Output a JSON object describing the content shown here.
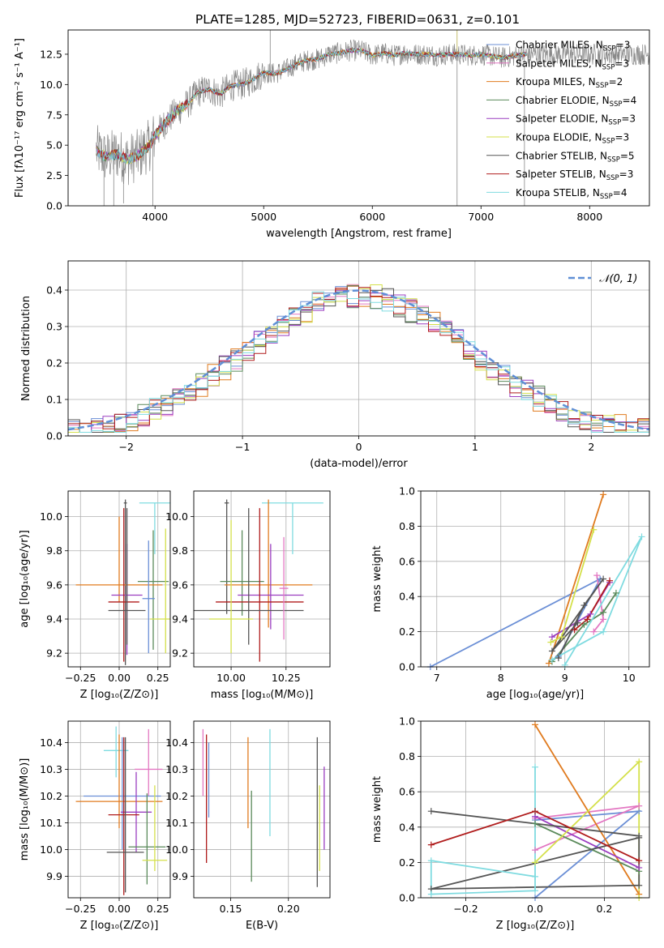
{
  "figure": {
    "title": "PLATE=1285, MJD=52723, FIBERID=0631, z=0.101"
  },
  "chart_data": [
    {
      "id": "spectrum",
      "type": "line",
      "title": "PLATE=1285, MJD=52723, FIBERID=0631, z=0.101",
      "xlabel": "wavelength [Angstrom, rest frame]",
      "ylabel": "Flux [fλ10⁻¹⁷ erg cm⁻² s⁻¹ A⁻¹]",
      "xlim": [
        3200,
        8550
      ],
      "ylim": [
        0,
        14.5
      ],
      "xticks": [
        4000,
        5000,
        6000,
        7000,
        8000
      ],
      "yticks": [
        0.0,
        2.5,
        5.0,
        7.5,
        10.0,
        12.5
      ],
      "grid": false,
      "legend_position": "top-right",
      "continuum": {
        "x": [
          3450,
          3550,
          3650,
          3750,
          3850,
          3950,
          4000,
          4100,
          4200,
          4300,
          4400,
          4500,
          4600,
          4700,
          4800,
          4900,
          5000,
          5100,
          5200,
          5300,
          5400,
          5500,
          5600,
          5700,
          5800,
          5900,
          6000,
          6100,
          6200,
          6300,
          6400,
          6500,
          6600,
          6700,
          6800,
          6900,
          7000,
          7200,
          7400
        ],
        "y": [
          4.6,
          4.0,
          4.3,
          3.8,
          4.2,
          5.0,
          5.8,
          6.9,
          7.8,
          8.4,
          9.4,
          9.6,
          9.2,
          9.9,
          10.0,
          10.4,
          11.0,
          10.9,
          11.2,
          11.7,
          12.0,
          12.1,
          12.5,
          12.6,
          12.8,
          12.8,
          12.4,
          12.6,
          12.4,
          12.6,
          12.5,
          12.5,
          12.4,
          12.5,
          12.5,
          12.4,
          12.5,
          12.2,
          12.5
        ]
      },
      "series": [
        {
          "name": "Chabrier MILES, N$_{SSP}$=3",
          "color": "#6b8fd6"
        },
        {
          "name": "Salpeter MILES, N$_{SSP}$=3",
          "color": "#e377c2"
        },
        {
          "name": "Kroupa MILES, N$_{SSP}$=2",
          "color": "#e07b1f"
        },
        {
          "name": "Chabrier ELODIE, N$_{SSP}$=4",
          "color": "#5a8a5a"
        },
        {
          "name": "Salpeter ELODIE, N$_{SSP}$=3",
          "color": "#9b3fc0"
        },
        {
          "name": "Kroupa ELODIE, N$_{SSP}$=3",
          "color": "#d4e04a"
        },
        {
          "name": "Chabrier STELIB, N$_{SSP}$=5",
          "color": "#555555"
        },
        {
          "name": "Salpeter STELIB, N$_{SSP}$=3",
          "color": "#b01c1c"
        },
        {
          "name": "Kroupa STELIB, N$_{SSP}$=4",
          "color": "#7fdbe0"
        }
      ]
    },
    {
      "id": "residuals",
      "type": "line",
      "xlabel": "(data-model)/error",
      "ylabel": "Normed distribution",
      "xlim": [
        -2.5,
        2.5
      ],
      "ylim": [
        0,
        0.48
      ],
      "xticks": [
        -2,
        -1,
        0,
        1,
        2
      ],
      "yticks": [
        0.0,
        0.1,
        0.2,
        0.3,
        0.4
      ],
      "grid": true,
      "legend_position": "top-right",
      "legend": "𝒩(0, 1)",
      "gaussian": {
        "mu": 0,
        "sigma": 1,
        "color": "#5f8fd6"
      },
      "bin_width": 0.1
    },
    {
      "id": "z-age",
      "type": "scatter",
      "xlabel": "Z [log₁₀(Z/Z⊙)]",
      "ylabel": "age  [log₁₀(age/yr)]",
      "xlim": [
        -0.33,
        0.33
      ],
      "ylim": [
        9.12,
        10.15
      ],
      "xticks": [
        -0.25,
        0.0,
        0.25
      ],
      "xtick_labels": [
        "−0.25",
        "0.00",
        "0.25"
      ],
      "yticks": [
        9.2,
        9.4,
        9.6,
        9.8,
        10.0
      ],
      "grid": true,
      "points": [
        {
          "x": 0.23,
          "y": 10.08,
          "xerr": 0.1,
          "yerr": [
            0.3,
            0.0
          ],
          "color": "#7fdbe0"
        },
        {
          "x": 0.04,
          "y": 10.08,
          "xerr": 0.01,
          "yerr": [
            0.95,
            0.02
          ],
          "color": "#555555"
        },
        {
          "x": 0.22,
          "y": 9.62,
          "xerr": 0.1,
          "yerr": [
            0.4,
            0.3
          ],
          "color": "#5a8a5a"
        },
        {
          "x": 0.0,
          "y": 9.6,
          "xerr": 0.28,
          "yerr": [
            0.1,
            0.4
          ],
          "color": "#e07b1f"
        },
        {
          "x": 0.05,
          "y": 9.54,
          "xerr": 0.1,
          "yerr": [
            0.35,
            0.3
          ],
          "color": "#9b3fc0"
        },
        {
          "x": 0.03,
          "y": 9.5,
          "xerr": 0.1,
          "yerr": [
            0.35,
            0.55
          ],
          "color": "#b01c1c"
        },
        {
          "x": 0.05,
          "y": 9.45,
          "xerr": 0.12,
          "yerr": [
            0.2,
            0.6
          ],
          "color": "#555555"
        },
        {
          "x": 0.3,
          "y": 9.4,
          "xerr": 0.1,
          "yerr": [
            0.2,
            0.53
          ],
          "color": "#d4e04a"
        },
        {
          "x": 0.19,
          "y": 9.52,
          "xerr": 0.04,
          "yerr": [
            0.32,
            0.34
          ],
          "color": "#6b8fd6"
        }
      ]
    },
    {
      "id": "mass-age",
      "type": "scatter",
      "xlabel": "mass [log₁₀(M/M⊙)]",
      "xlim": [
        9.83,
        10.45
      ],
      "ylim": [
        9.12,
        10.15
      ],
      "xticks": [
        10.0,
        10.25
      ],
      "xtick_labels": [
        "10.00",
        "10.25"
      ],
      "yticks": [
        9.2,
        9.4,
        9.6,
        9.8,
        10.0
      ],
      "grid": true,
      "points": [
        {
          "x": 10.28,
          "y": 10.08,
          "xerr": 0.14,
          "yerr": [
            0.3,
            0.0
          ],
          "color": "#7fdbe0"
        },
        {
          "x": 9.98,
          "y": 10.08,
          "xerr": 0.01,
          "yerr": [
            0.65,
            0.02
          ],
          "color": "#555555"
        },
        {
          "x": 10.05,
          "y": 9.62,
          "xerr": 0.1,
          "yerr": [
            0.2,
            0.3
          ],
          "color": "#5a8a5a"
        },
        {
          "x": 10.17,
          "y": 9.6,
          "xerr": 0.2,
          "yerr": [
            0.25,
            0.5
          ],
          "color": "#e07b1f"
        },
        {
          "x": 10.18,
          "y": 9.54,
          "xerr": 0.15,
          "yerr": [
            0.2,
            0.3
          ],
          "color": "#9b3fc0"
        },
        {
          "x": 10.13,
          "y": 9.5,
          "xerr": 0.2,
          "yerr": [
            0.35,
            0.55
          ],
          "color": "#b01c1c"
        },
        {
          "x": 10.08,
          "y": 9.45,
          "xerr": 0.25,
          "yerr": [
            0.2,
            0.6
          ],
          "color": "#555555"
        },
        {
          "x": 10.0,
          "y": 9.4,
          "xerr": 0.1,
          "yerr": [
            0.2,
            0.58
          ],
          "color": "#d4e04a"
        },
        {
          "x": 10.24,
          "y": 9.58,
          "xerr": 0.02,
          "yerr": [
            0.3,
            0.3
          ],
          "color": "#e377c2"
        }
      ]
    },
    {
      "id": "age-weight",
      "type": "line",
      "xlabel": "age  [log₁₀(age/yr)]",
      "ylabel": "mass weight",
      "xlim": [
        6.75,
        10.32
      ],
      "ylim": [
        0,
        1.0
      ],
      "xticks": [
        7,
        8,
        9,
        10
      ],
      "yticks": [
        0.0,
        0.2,
        0.4,
        0.6,
        0.8,
        1.0
      ],
      "grid": true,
      "series": [
        {
          "color": "#6b8fd6",
          "x": [
            6.9,
            9.55,
            8.9
          ],
          "y": [
            0.0,
            0.5,
            0.06
          ]
        },
        {
          "color": "#e377c2",
          "x": [
            9.45,
            9.6,
            9.5
          ],
          "y": [
            0.2,
            0.27,
            0.52
          ]
        },
        {
          "color": "#e07b1f",
          "x": [
            8.75,
            9.6
          ],
          "y": [
            0.02,
            0.98
          ]
        },
        {
          "color": "#5a8a5a",
          "x": [
            8.8,
            9.3,
            9.6,
            9.8
          ],
          "y": [
            0.03,
            0.24,
            0.31,
            0.42
          ]
        },
        {
          "color": "#9b3fc0",
          "x": [
            8.8,
            9.4,
            9.7
          ],
          "y": [
            0.17,
            0.3,
            0.48
          ]
        },
        {
          "color": "#d4e04a",
          "x": [
            8.78,
            8.95,
            9.45
          ],
          "y": [
            0.14,
            0.17,
            0.78
          ]
        },
        {
          "color": "#555555",
          "x": [
            8.9,
            9.3,
            9.6,
            8.8,
            9.2
          ],
          "y": [
            0.05,
            0.35,
            0.5,
            0.09,
            0.25
          ]
        },
        {
          "color": "#b01c1c",
          "x": [
            9.15,
            9.35,
            9.7
          ],
          "y": [
            0.21,
            0.27,
            0.49
          ]
        },
        {
          "color": "#7fdbe0",
          "x": [
            8.8,
            9.6,
            10.2,
            9.0
          ],
          "y": [
            0.04,
            0.2,
            0.74,
            0.01
          ]
        }
      ]
    },
    {
      "id": "z-mass",
      "type": "scatter",
      "xlabel": "Z [log₁₀(Z/Z⊙)]",
      "ylabel": "mass [log₁₀(M/M⊙)]",
      "xlim": [
        -0.33,
        0.33
      ],
      "ylim": [
        9.82,
        10.48
      ],
      "xticks": [
        -0.25,
        0.0,
        0.25
      ],
      "xtick_labels": [
        "−0.25",
        "0.00",
        "0.25"
      ],
      "yticks": [
        9.9,
        10.0,
        10.1,
        10.2,
        10.3,
        10.4
      ],
      "grid": true,
      "points": [
        {
          "x": -0.02,
          "y": 10.37,
          "xerr": 0.08,
          "yerr": [
            0.1,
            0.09
          ],
          "color": "#7fdbe0"
        },
        {
          "x": 0.19,
          "y": 10.3,
          "xerr": 0.09,
          "yerr": [
            0.1,
            0.15
          ],
          "color": "#e377c2"
        },
        {
          "x": 0.02,
          "y": 10.2,
          "xerr": 0.25,
          "yerr": [
            0.2,
            0.22
          ],
          "color": "#6b8fd6"
        },
        {
          "x": 0.0,
          "y": 10.18,
          "xerr": 0.28,
          "yerr": [
            0.1,
            0.25
          ],
          "color": "#e07b1f"
        },
        {
          "x": 0.11,
          "y": 10.14,
          "xerr": 0.1,
          "yerr": [
            0.15,
            0.15
          ],
          "color": "#9b3fc0"
        },
        {
          "x": 0.03,
          "y": 10.13,
          "xerr": 0.1,
          "yerr": [
            0.3,
            0.29
          ],
          "color": "#b01c1c"
        },
        {
          "x": 0.18,
          "y": 10.01,
          "xerr": 0.12,
          "yerr": [
            0.14,
            0.2
          ],
          "color": "#5a8a5a"
        },
        {
          "x": 0.04,
          "y": 9.99,
          "xerr": 0.12,
          "yerr": [
            0.15,
            0.43
          ],
          "color": "#555555"
        },
        {
          "x": 0.23,
          "y": 9.96,
          "xerr": 0.08,
          "yerr": [
            0.04,
            0.28
          ],
          "color": "#d4e04a"
        }
      ]
    },
    {
      "id": "ebv-mass",
      "type": "scatter",
      "xlabel": "E(B-V)",
      "xlim": [
        0.118,
        0.236
      ],
      "ylim": [
        9.82,
        10.48
      ],
      "xticks": [
        0.15,
        0.2
      ],
      "xtick_labels": [
        "0.15",
        "0.20"
      ],
      "yticks": [
        9.9,
        10.0,
        10.1,
        10.2,
        10.3,
        10.4
      ],
      "grid": true,
      "points": [
        {
          "x": 0.126,
          "y": 10.3,
          "yerr": [
            0.1,
            0.15
          ],
          "color": "#e377c2"
        },
        {
          "x": 0.129,
          "y": 10.2,
          "yerr": [
            0.25,
            0.23
          ],
          "color": "#b01c1c"
        },
        {
          "x": 0.131,
          "y": 10.2,
          "yerr": [
            0.08,
            0.2
          ],
          "color": "#6b8fd6"
        },
        {
          "x": 0.165,
          "y": 10.25,
          "yerr": [
            0.17,
            0.17
          ],
          "color": "#e07b1f"
        },
        {
          "x": 0.168,
          "y": 10.05,
          "yerr": [
            0.17,
            0.17
          ],
          "color": "#5a8a5a"
        },
        {
          "x": 0.184,
          "y": 10.25,
          "yerr": [
            0.2,
            0.2
          ],
          "color": "#7fdbe0"
        },
        {
          "x": 0.225,
          "y": 10.2,
          "yerr": [
            0.34,
            0.22
          ],
          "color": "#555555"
        },
        {
          "x": 0.227,
          "y": 10.1,
          "yerr": [
            0.18,
            0.14
          ],
          "color": "#d4e04a"
        },
        {
          "x": 0.231,
          "y": 10.15,
          "yerr": [
            0.15,
            0.16
          ],
          "color": "#9b3fc0"
        }
      ]
    },
    {
      "id": "z-weight",
      "type": "line",
      "xlabel": "Z [log₁₀(Z/Z⊙)]",
      "ylabel": "mass weight",
      "xlim": [
        -0.33,
        0.33
      ],
      "ylim": [
        0,
        1.0
      ],
      "xticks": [
        -0.2,
        0.0,
        0.2
      ],
      "xtick_labels": [
        "−0.2",
        "0.0",
        "0.2"
      ],
      "yticks": [
        0.0,
        0.2,
        0.4,
        0.6,
        0.8,
        1.0
      ],
      "grid": true,
      "series": [
        {
          "color": "#6b8fd6",
          "x": [
            0.0,
            0.3,
            0.0
          ],
          "y": [
            0.0,
            0.49,
            0.44
          ]
        },
        {
          "color": "#e377c2",
          "x": [
            0.0,
            0.3,
            0.0
          ],
          "y": [
            0.27,
            0.52,
            0.45
          ]
        },
        {
          "color": "#e07b1f",
          "x": [
            0.0,
            0.3
          ],
          "y": [
            0.98,
            0.02
          ]
        },
        {
          "color": "#5a8a5a",
          "x": [
            0.0,
            0.3
          ],
          "y": [
            0.42,
            0.15
          ]
        },
        {
          "color": "#9b3fc0",
          "x": [
            0.0,
            0.3
          ],
          "y": [
            0.46,
            0.17
          ]
        },
        {
          "color": "#d4e04a",
          "x": [
            0.0,
            0.3,
            0.3
          ],
          "y": [
            0.2,
            0.77,
            0.0
          ]
        },
        {
          "color": "#555555",
          "x": [
            -0.3,
            0.3,
            0.3,
            -0.3,
            0.3
          ],
          "y": [
            0.49,
            0.35,
            0.07,
            0.05,
            0.34
          ]
        },
        {
          "color": "#b01c1c",
          "x": [
            -0.3,
            0.0,
            0.3
          ],
          "y": [
            0.3,
            0.49,
            0.21
          ]
        },
        {
          "color": "#7fdbe0",
          "x": [
            0.0,
            0.0,
            -0.3,
            -0.3,
            0.0
          ],
          "y": [
            0.74,
            0.04,
            0.02,
            0.21,
            0.12
          ]
        }
      ]
    }
  ]
}
